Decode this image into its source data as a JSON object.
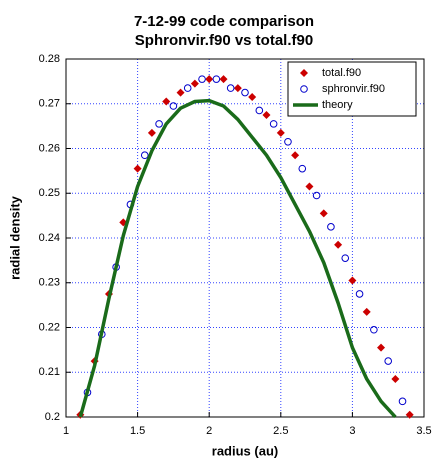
{
  "chart_data": {
    "type": "scatter",
    "title": "7-12-99 code comparison",
    "subtitle": "Sphronvir.f90 vs total.f90",
    "x_label": "radius (au)",
    "y_label": "radial density",
    "xlim": [
      1,
      3.5
    ],
    "ylim": [
      0.2,
      0.28
    ],
    "xticks": [
      1,
      1.5,
      2,
      2.5,
      3,
      3.5
    ],
    "yticks": [
      0.2,
      0.21,
      0.22,
      0.23,
      0.24,
      0.25,
      0.26,
      0.27,
      0.28
    ],
    "grid": true,
    "legend": "top-right",
    "series": [
      {
        "name": "total.f90",
        "type": "scatter",
        "marker": "diamond",
        "color": "#cc0000",
        "x": [
          1.1,
          1.2,
          1.3,
          1.4,
          1.5,
          1.6,
          1.7,
          1.8,
          1.9,
          2.0,
          2.1,
          2.2,
          2.3,
          2.4,
          2.5,
          2.6,
          2.7,
          2.8,
          2.9,
          3.0,
          3.1,
          3.2,
          3.3,
          3.4
        ],
        "values": [
          0.2005,
          0.2125,
          0.2275,
          0.2435,
          0.2555,
          0.2635,
          0.2705,
          0.2725,
          0.2745,
          0.2755,
          0.2755,
          0.2735,
          0.2715,
          0.2675,
          0.2635,
          0.2585,
          0.2515,
          0.2455,
          0.2385,
          0.2305,
          0.2235,
          0.2155,
          0.2085,
          0.2005
        ]
      },
      {
        "name": "sphronvir.f90",
        "type": "scatter",
        "marker": "circle",
        "color": "#0000cc",
        "x": [
          1.15,
          1.25,
          1.35,
          1.45,
          1.55,
          1.65,
          1.75,
          1.85,
          1.95,
          2.05,
          2.15,
          2.25,
          2.35,
          2.45,
          2.55,
          2.65,
          2.75,
          2.85,
          2.95,
          3.05,
          3.15,
          3.25,
          3.35
        ],
        "values": [
          0.2055,
          0.2185,
          0.2335,
          0.2475,
          0.2585,
          0.2655,
          0.2695,
          0.2735,
          0.2755,
          0.2755,
          0.2735,
          0.2725,
          0.2685,
          0.2655,
          0.2615,
          0.2555,
          0.2495,
          0.2425,
          0.2355,
          0.2275,
          0.2195,
          0.2125,
          0.2035
        ]
      },
      {
        "name": "theory",
        "type": "line",
        "color": "#1a6b1a",
        "x": [
          1.1,
          1.2,
          1.3,
          1.4,
          1.5,
          1.6,
          1.7,
          1.8,
          1.9,
          2.0,
          2.1,
          2.2,
          2.3,
          2.4,
          2.5,
          2.6,
          2.7,
          2.8,
          2.9,
          3.0,
          3.1,
          3.2,
          3.3
        ],
        "values": [
          0.2,
          0.2115,
          0.2265,
          0.2405,
          0.2515,
          0.2595,
          0.2655,
          0.269,
          0.2705,
          0.2707,
          0.2695,
          0.2665,
          0.2625,
          0.2585,
          0.2535,
          0.2475,
          0.2415,
          0.2345,
          0.2255,
          0.2155,
          0.2085,
          0.2035,
          0.2
        ]
      }
    ]
  }
}
